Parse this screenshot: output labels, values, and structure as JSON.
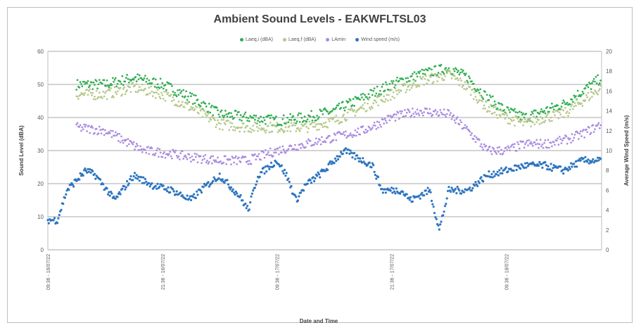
{
  "chart_data": {
    "type": "scatter",
    "title": "Ambient Sound Levels - EAKWFLTSL03",
    "xlabel": "Date and Time",
    "ylabel": "Sound Level (dBA)",
    "y2label": "Average Wind Speed (m/s)",
    "ylim": [
      0,
      60
    ],
    "y2lim": [
      0,
      20
    ],
    "yticks": [
      "0",
      "10",
      "20",
      "30",
      "40",
      "50",
      "60"
    ],
    "y2ticks": [
      "0",
      "2",
      "4",
      "6",
      "8",
      "10",
      "12",
      "14",
      "16",
      "18",
      "20"
    ],
    "xticks": [
      "09:36 - 16/07/22",
      "21:36 - 16/07/22",
      "09:36 - 17/07/22",
      "21:36 - 17/07/22",
      "09:36 - 18/07/22"
    ],
    "xlim_hours": [
      0,
      58
    ],
    "grid": true,
    "legend_position": "top",
    "series": [
      {
        "name": "Laeq,i (dBA)",
        "color": "#2fae4f",
        "axis": "left",
        "keypoints": [
          [
            0,
            null
          ],
          [
            3,
            50
          ],
          [
            6,
            50
          ],
          [
            9,
            52
          ],
          [
            12,
            50
          ],
          [
            15,
            46
          ],
          [
            18,
            41
          ],
          [
            21,
            40
          ],
          [
            24,
            39
          ],
          [
            27,
            40
          ],
          [
            30,
            42
          ],
          [
            33,
            46
          ],
          [
            36,
            50
          ],
          [
            39,
            53
          ],
          [
            42,
            55
          ],
          [
            44,
            52
          ],
          [
            46,
            46
          ],
          [
            48,
            42
          ],
          [
            50,
            40
          ],
          [
            52,
            42
          ],
          [
            54,
            44
          ],
          [
            56,
            48
          ],
          [
            58,
            52
          ],
          [
            61,
            54
          ],
          [
            63,
            55
          ]
        ]
      },
      {
        "name": "Laeq,f (dBA)",
        "color": "#b5c98a",
        "axis": "left",
        "keypoints": [
          [
            0,
            null
          ],
          [
            3,
            47
          ],
          [
            6,
            47
          ],
          [
            9,
            49
          ],
          [
            12,
            47
          ],
          [
            15,
            43
          ],
          [
            18,
            38
          ],
          [
            21,
            37
          ],
          [
            24,
            37
          ],
          [
            27,
            37
          ],
          [
            30,
            39
          ],
          [
            33,
            43
          ],
          [
            36,
            47
          ],
          [
            39,
            51
          ],
          [
            42,
            53
          ],
          [
            44,
            49
          ],
          [
            46,
            43
          ],
          [
            48,
            40
          ],
          [
            50,
            38
          ],
          [
            52,
            40
          ],
          [
            54,
            41
          ],
          [
            56,
            45
          ],
          [
            58,
            49
          ],
          [
            61,
            51
          ],
          [
            63,
            53
          ]
        ]
      },
      {
        "name": "LAmin",
        "color": "#a98be0",
        "axis": "left",
        "keypoints": [
          [
            0,
            null
          ],
          [
            3,
            37
          ],
          [
            6,
            36
          ],
          [
            8,
            33
          ],
          [
            10,
            30
          ],
          [
            13,
            29
          ],
          [
            15,
            28
          ],
          [
            18,
            27
          ],
          [
            21,
            27
          ],
          [
            24,
            30
          ],
          [
            27,
            32
          ],
          [
            30,
            34
          ],
          [
            33,
            36
          ],
          [
            36,
            40
          ],
          [
            39,
            42
          ],
          [
            42,
            41
          ],
          [
            44,
            36
          ],
          [
            46,
            30
          ],
          [
            48,
            30
          ],
          [
            50,
            32
          ],
          [
            52,
            32
          ],
          [
            54,
            33
          ],
          [
            56,
            35
          ],
          [
            58,
            38
          ],
          [
            61,
            41
          ],
          [
            63,
            42
          ]
        ]
      },
      {
        "name": "Wind speed (m/s)",
        "color": "#2e75c0",
        "axis": "right",
        "keypoints": [
          [
            0,
            3
          ],
          [
            1,
            3
          ],
          [
            2,
            6
          ],
          [
            4,
            8
          ],
          [
            5,
            7.5
          ],
          [
            7,
            5
          ],
          [
            9,
            7.5
          ],
          [
            11,
            6.5
          ],
          [
            13,
            6
          ],
          [
            15,
            5
          ],
          [
            16,
            6
          ],
          [
            18,
            7.5
          ],
          [
            20,
            5.5
          ],
          [
            21,
            4
          ],
          [
            22,
            7.5
          ],
          [
            24,
            9
          ],
          [
            25,
            7.5
          ],
          [
            26,
            5
          ],
          [
            27,
            6.5
          ],
          [
            29,
            8
          ],
          [
            31,
            10
          ],
          [
            33,
            9
          ],
          [
            34,
            8.5
          ],
          [
            35,
            6
          ],
          [
            37,
            6
          ],
          [
            38,
            5
          ],
          [
            40,
            6
          ],
          [
            41,
            2
          ],
          [
            42,
            6
          ],
          [
            44,
            6
          ],
          [
            46,
            7.5
          ],
          [
            48,
            8
          ],
          [
            50,
            8.5
          ],
          [
            52,
            8.5
          ],
          [
            54,
            8
          ],
          [
            56,
            9
          ],
          [
            58,
            9
          ],
          [
            60,
            10
          ],
          [
            61,
            8
          ],
          [
            63,
            8
          ],
          [
            64,
            7.5
          ]
        ]
      }
    ]
  }
}
